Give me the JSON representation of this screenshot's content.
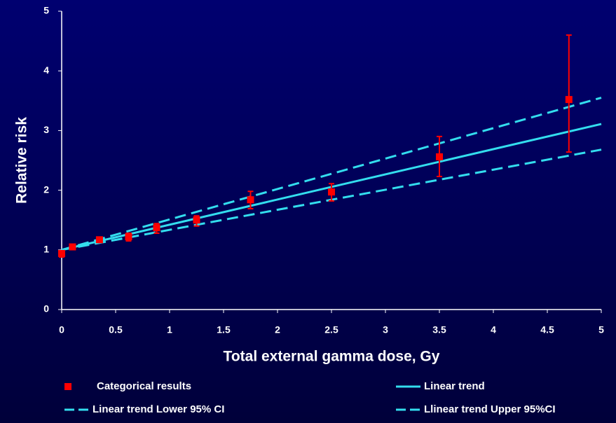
{
  "chart_data": {
    "type": "scatter-trend",
    "xlabel": "Total external gamma dose, Gy",
    "ylabel": "Relative risk",
    "xlim": [
      0,
      5
    ],
    "ylim": [
      0,
      5
    ],
    "xticks": [
      0,
      0.5,
      1,
      1.5,
      2,
      2.5,
      3,
      3.5,
      4,
      4.5,
      5
    ],
    "yticks": [
      0,
      1,
      2,
      3,
      4,
      5
    ],
    "series": [
      {
        "name": "Categorical results",
        "kind": "points",
        "color": "#ff0000",
        "x": [
          0,
          0.1,
          0.35,
          0.62,
          0.88,
          1.25,
          1.75,
          2.5,
          3.5,
          4.7
        ],
        "values": [
          0.94,
          1.05,
          1.17,
          1.22,
          1.37,
          1.5,
          1.84,
          1.97,
          2.56,
          3.52
        ],
        "lower": [
          0.88,
          1.02,
          1.14,
          1.15,
          1.28,
          1.4,
          1.69,
          1.82,
          2.23,
          2.64
        ],
        "upper": [
          0.98,
          1.08,
          1.2,
          1.28,
          1.44,
          1.57,
          1.98,
          2.11,
          2.9,
          4.6
        ]
      },
      {
        "name": "Linear trend",
        "kind": "line",
        "dash": false,
        "color": "#33ddee",
        "x": [
          0,
          5
        ],
        "values": [
          1,
          3.11
        ]
      },
      {
        "name": "Linear trend Lower 95% CI",
        "kind": "line",
        "dash": true,
        "color": "#33ddee",
        "x": [
          0,
          5
        ],
        "values": [
          1,
          2.68
        ]
      },
      {
        "name": "Llinear trend Upper 95%CI",
        "kind": "line",
        "dash": true,
        "color": "#33ddee",
        "x": [
          0,
          5
        ],
        "values": [
          1,
          3.55
        ]
      }
    ]
  }
}
